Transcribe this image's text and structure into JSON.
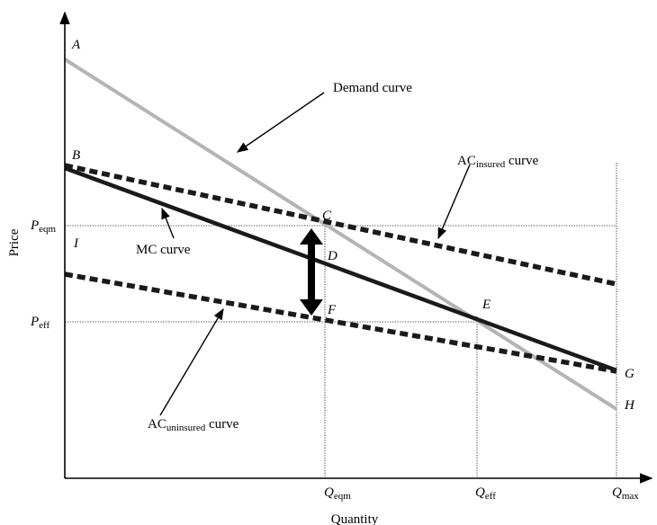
{
  "chart_data": {
    "type": "line",
    "title": "",
    "xlabel": "Quantity",
    "ylabel": "Price",
    "x_ticks": [
      {
        "main": "Q",
        "sub": "eqm"
      },
      {
        "main": "Q",
        "sub": "eff"
      },
      {
        "main": "Q",
        "sub": "max"
      }
    ],
    "y_ticks": [
      {
        "main": "P",
        "sub": "eqm"
      },
      {
        "main": "P",
        "sub": "eff"
      }
    ],
    "points": [
      "A",
      "B",
      "C",
      "D",
      "E",
      "F",
      "G",
      "H",
      "I"
    ],
    "series": [
      {
        "name": "Demand curve",
        "color": "#b4b4b4",
        "style": "solid-gray"
      },
      {
        "name": "MC curve",
        "color": "#1a1a1a",
        "style": "solid-thick"
      },
      {
        "name": "AC insured curve",
        "main": "AC",
        "sub": "insured",
        "tail": " curve",
        "color": "#1a1a1a",
        "style": "dashed-thick"
      },
      {
        "name": "AC uninsured curve",
        "main": "AC",
        "sub": "uninsured",
        "tail": " curve",
        "color": "#1a1a1a",
        "style": "dashed-thick"
      }
    ],
    "grid": false,
    "legend": "none"
  }
}
